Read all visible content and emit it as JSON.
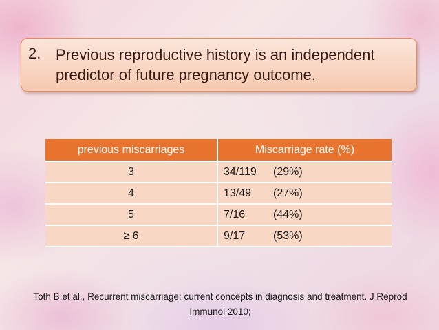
{
  "callout": {
    "number": "2.",
    "text": "Previous reproductive history is an independent predictor of future pregnancy outcome."
  },
  "table": {
    "headers": [
      "previous miscarriages",
      "Miscarriage rate (%)"
    ],
    "rows": [
      {
        "count": "3",
        "rate": "34/119",
        "percent": "(29%)"
      },
      {
        "count": "4",
        "rate": "13/49",
        "percent": "(27%)"
      },
      {
        "count": "5",
        "rate": "7/16",
        "percent": "(44%)"
      },
      {
        "count": "≥ 6",
        "rate": "9/17",
        "percent": "(53%)"
      }
    ]
  },
  "citation": "Toth B et al., Recurrent miscarriage: current concepts in diagnosis and treatment. J Reprod Immunol 2010;",
  "colors": {
    "header_bg": "#e8732f",
    "row_bg": "#f8d7c4",
    "callout_border": "#e98a5a"
  }
}
